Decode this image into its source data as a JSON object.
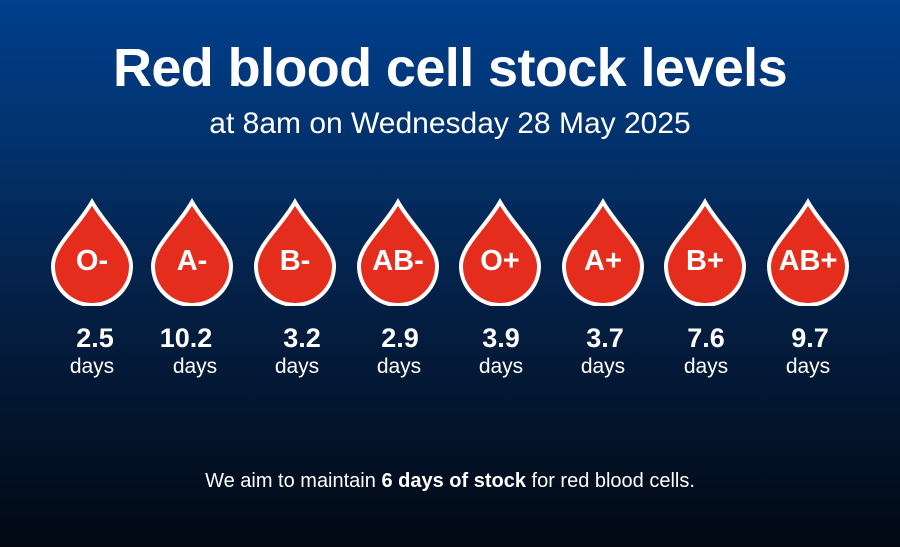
{
  "header": {
    "title": "Red blood cell stock levels",
    "subtitle": "at 8am on Wednesday 28 May 2025"
  },
  "blood_types": [
    {
      "label": "O-",
      "days": "2.5",
      "unit": "days"
    },
    {
      "label": "A-",
      "days": "10.2",
      "unit": "days"
    },
    {
      "label": "B-",
      "days": "3.2",
      "unit": "days"
    },
    {
      "label": "AB-",
      "days": "2.9",
      "unit": "days"
    },
    {
      "label": "O+",
      "days": "3.9",
      "unit": "days"
    },
    {
      "label": "A+",
      "days": "3.7",
      "unit": "days"
    },
    {
      "label": "B+",
      "days": "7.6",
      "unit": "days"
    },
    {
      "label": "AB+",
      "days": "9.7",
      "unit": "days"
    }
  ],
  "footer": {
    "prefix": "We aim to maintain ",
    "emphasis": "6 days of stock",
    "suffix": " for red blood cells."
  },
  "colors": {
    "drop_red": "#e52d1d",
    "drop_outline": "#ffffff",
    "background_top": "#003f8d",
    "background_bottom": "#020913"
  }
}
